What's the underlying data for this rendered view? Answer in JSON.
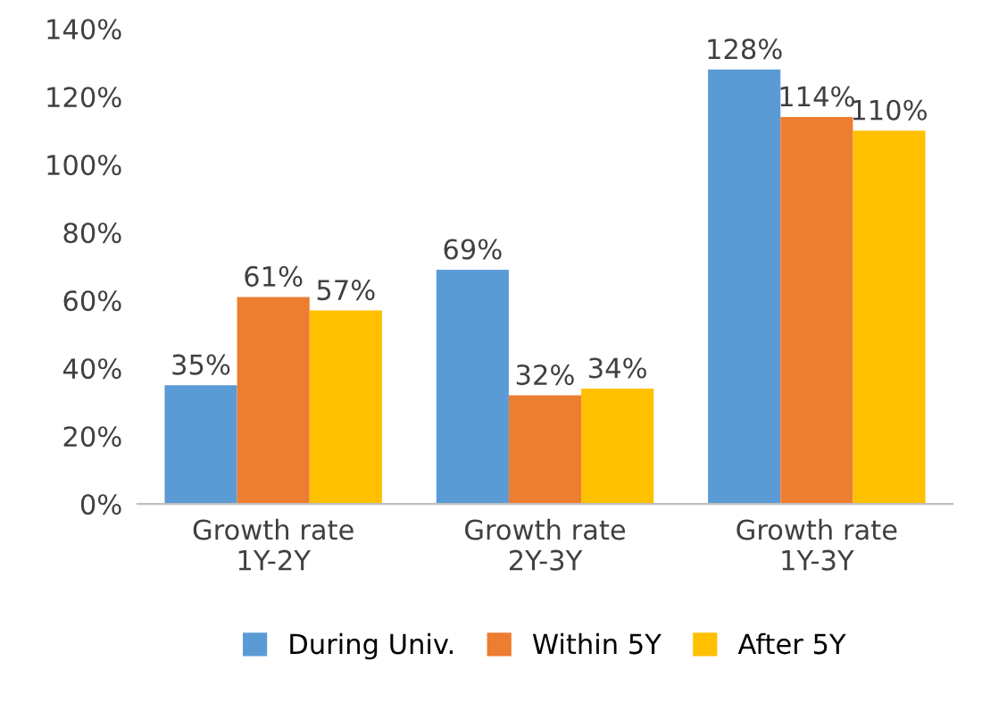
{
  "chart_data": {
    "type": "bar",
    "categories": [
      "Growth rate\n1Y-2Y",
      "Growth rate\n2Y-3Y",
      "Growth rate\n1Y-3Y"
    ],
    "series": [
      {
        "name": "During Univ.",
        "color": "#5b9bd5",
        "values": [
          35,
          69,
          128
        ],
        "value_labels": [
          "35%",
          "69%",
          "128%"
        ]
      },
      {
        "name": "Within 5Y",
        "color": "#ed7d31",
        "values": [
          61,
          32,
          114
        ],
        "value_labels": [
          "61%",
          "32%",
          "114%"
        ]
      },
      {
        "name": "After 5Y",
        "color": "#ffc000",
        "values": [
          57,
          34,
          110
        ],
        "value_labels": [
          "57%",
          "34%",
          "110%"
        ]
      }
    ],
    "ylim": [
      0,
      140
    ],
    "yticks": [
      {
        "value": 0,
        "label": "0%"
      },
      {
        "value": 20,
        "label": "20%"
      },
      {
        "value": 40,
        "label": "40%"
      },
      {
        "value": 60,
        "label": "60%"
      },
      {
        "value": 80,
        "label": "80%"
      },
      {
        "value": 100,
        "label": "100%"
      },
      {
        "value": 120,
        "label": "120%"
      },
      {
        "value": 140,
        "label": "140%"
      }
    ],
    "grid": false,
    "legend": "bottom"
  }
}
